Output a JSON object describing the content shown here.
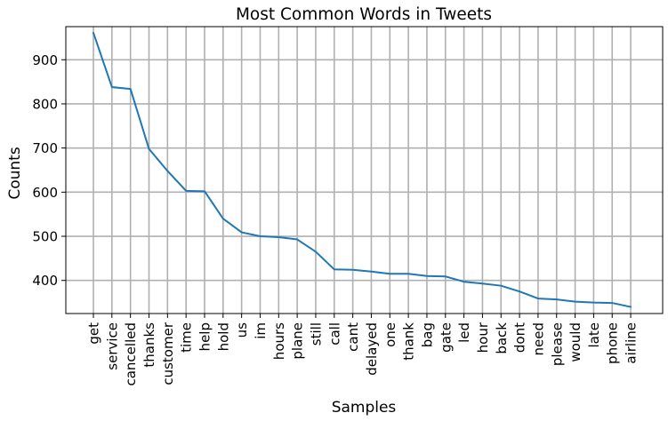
{
  "chart_data": {
    "type": "line",
    "title": "Most Common Words in Tweets",
    "xlabel": "Samples",
    "ylabel": "Counts",
    "categories": [
      "get",
      "service",
      "cancelled",
      "thanks",
      "customer",
      "time",
      "help",
      "hold",
      "us",
      "im",
      "hours",
      "plane",
      "still",
      "call",
      "cant",
      "delayed",
      "one",
      "thank",
      "bag",
      "gate",
      "led",
      "hour",
      "back",
      "dont",
      "need",
      "please",
      "would",
      "late",
      "phone",
      "airline"
    ],
    "series": [
      {
        "values": [
          961,
          838,
          834,
          698,
          648,
          603,
          602,
          540,
          509,
          500,
          498,
          493,
          465,
          425,
          424,
          420,
          415,
          415,
          410,
          409,
          397,
          393,
          388,
          375,
          359,
          357,
          352,
          350,
          349,
          340
        ],
        "color": "#1f77b4"
      }
    ],
    "yticks": [
      400,
      500,
      600,
      700,
      800,
      900
    ],
    "ylim": [
      325,
      975
    ],
    "grid": true,
    "tick_label_rotation": 90
  }
}
